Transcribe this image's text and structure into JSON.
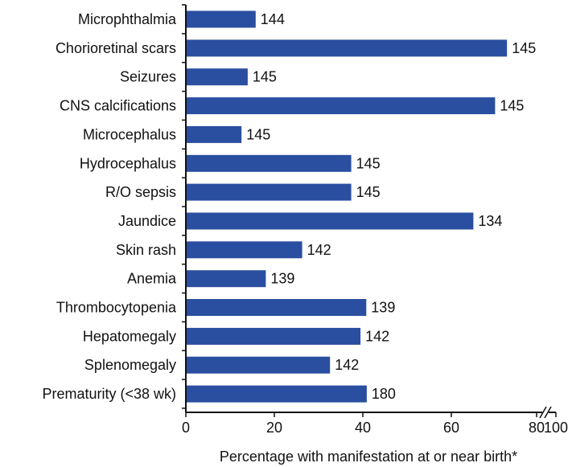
{
  "chart_data": {
    "type": "bar",
    "orientation": "horizontal",
    "categories": [
      "Microphthalmia",
      "Chorioretinal scars",
      "Seizures",
      "CNS calcifications",
      "Microcephalus",
      "Hydrocephalus",
      "R/O sepsis",
      "Jaundice",
      "Skin rash",
      "Anemia",
      "Thrombocytopenia",
      "Hepatomegaly",
      "Splenomegaly",
      "Prematurity (<38 wk)"
    ],
    "values": [
      15.6,
      72.4,
      13.8,
      69.7,
      12.4,
      37.2,
      37.2,
      64.8,
      26.1,
      17.9,
      40.6,
      39.3,
      32.4,
      40.7
    ],
    "value_labels": [
      "144",
      "145",
      "145",
      "145",
      "145",
      "145",
      "145",
      "134",
      "142",
      "139",
      "139",
      "142",
      "142",
      "180"
    ],
    "xticks": [
      "0",
      "20",
      "40",
      "60",
      "80",
      "100"
    ],
    "xlabel": "Percentage with manifestation at or near birth*",
    "ylabel": "",
    "xlim": [
      0,
      100
    ],
    "axis_break": "between 80 and 100",
    "grid": false,
    "bar_color": "#2a4fa0"
  }
}
